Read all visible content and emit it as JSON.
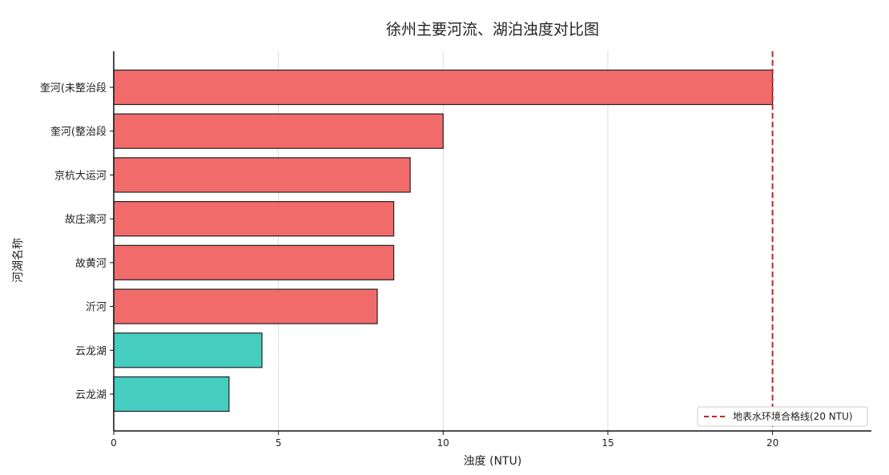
{
  "chart_data": {
    "type": "bar",
    "orientation": "horizontal",
    "title": "徐州主要河流、湖泊浊度对比图",
    "xlabel": "浊度 (NTU)",
    "ylabel": "河湖名称",
    "categories": [
      "奎河(未整治段",
      "奎河(整治段",
      "京杭大运河",
      "故庄漓河",
      "故黄河",
      "沂河",
      "云龙湖",
      "云龙湖"
    ],
    "values": [
      20,
      10,
      9,
      8.5,
      8.5,
      8,
      4.5,
      3.5
    ],
    "bar_colors": [
      "#f26b6b",
      "#f26b6b",
      "#f26b6b",
      "#f26b6b",
      "#f26b6b",
      "#f26b6b",
      "#45cdc0",
      "#45cdc0"
    ],
    "xlim": [
      0,
      23
    ],
    "xticks": [
      0,
      5,
      10,
      15,
      20
    ],
    "grid": {
      "x": true,
      "y": false
    },
    "reference_line": {
      "value": 20,
      "color": "#c0262b",
      "style": "dashed",
      "label": "地表水环境合格线(20 NTU)"
    },
    "legend": {
      "position": "bottom-right"
    }
  }
}
